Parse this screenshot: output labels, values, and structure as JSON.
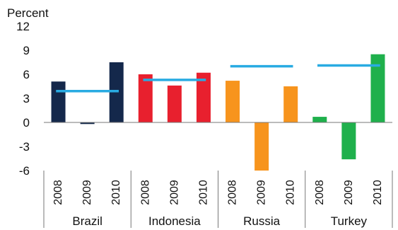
{
  "chart_data": {
    "type": "bar",
    "title": "",
    "ylabel": "Percent",
    "ylim": [
      -6,
      12
    ],
    "yticks": [
      12,
      9,
      6,
      3,
      0,
      -3,
      -6
    ],
    "grid": false,
    "groups": [
      {
        "name": "Brazil",
        "color": "#14284b",
        "bars": [
          {
            "year": "2008",
            "value": 5.1
          },
          {
            "year": "2009",
            "value": -0.2
          },
          {
            "year": "2010",
            "value": 7.5
          }
        ],
        "average": 3.9
      },
      {
        "name": "Indonesia",
        "color": "#e8202e",
        "bars": [
          {
            "year": "2008",
            "value": 6.0
          },
          {
            "year": "2009",
            "value": 4.6
          },
          {
            "year": "2010",
            "value": 6.2
          }
        ],
        "average": 5.3
      },
      {
        "name": "Russia",
        "color": "#f7941d",
        "bars": [
          {
            "year": "2008",
            "value": 5.2
          },
          {
            "year": "2009",
            "value": -6.0
          },
          {
            "year": "2010",
            "value": 4.5
          }
        ],
        "average": 7.0
      },
      {
        "name": "Turkey",
        "color": "#1fb04c",
        "bars": [
          {
            "year": "2008",
            "value": 0.7
          },
          {
            "year": "2009",
            "value": -4.6
          },
          {
            "year": "2010",
            "value": 8.5
          }
        ],
        "average": 7.1
      }
    ],
    "average_line_color": "#29abe2"
  }
}
